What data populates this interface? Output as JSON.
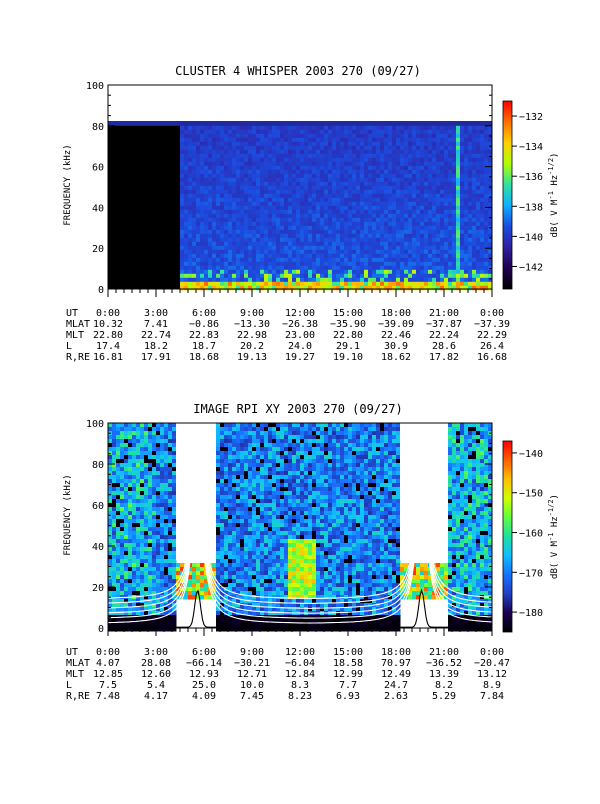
{
  "chart_data": [
    {
      "type": "heatmap",
      "title": "CLUSTER 4 WHISPER 2003 270 (09/27)",
      "ylabel": "FREQUENCY (kHz)",
      "ylim": [
        0,
        100
      ],
      "yticks": [
        0,
        20,
        40,
        60,
        80,
        100
      ],
      "data_freq_range": [
        0,
        80
      ],
      "data_start_ut": "4:30",
      "x_ticks": [
        "0:00",
        "3:00",
        "6:00",
        "9:00",
        "12:00",
        "15:00",
        "18:00",
        "21:00",
        "0:00"
      ],
      "colorbar": {
        "label": "dB( V M^-1 Hz^-1/2)",
        "label_main": "dB( V M",
        "label_exp1": "-1",
        "label_mid": " Hz",
        "label_exp2": "-1/2",
        "label_end": ")",
        "ticks": [
          -132,
          -134,
          -136,
          -138,
          -140,
          -142
        ],
        "range": [
          -143.5,
          -131
        ],
        "colors": [
          "#000000",
          "#200050",
          "#3020a0",
          "#1c4ce0",
          "#10b0ff",
          "#30e0a0",
          "#b0ff00",
          "#ffd000",
          "#ff7000",
          "#ff0000"
        ]
      },
      "ephemeris": {
        "labels": [
          "UT",
          "MLAT",
          "MLT",
          "L",
          "R,RE"
        ],
        "rows": [
          [
            "0:00",
            "3:00",
            "6:00",
            "9:00",
            "12:00",
            "15:00",
            "18:00",
            "21:00",
            "0:00"
          ],
          [
            "10.32",
            "7.41",
            "-0.86",
            "-13.30",
            "-26.38",
            "-35.90",
            "-39.09",
            "-37.87",
            "-37.39"
          ],
          [
            "22.80",
            "22.74",
            "22.83",
            "22.98",
            "23.00",
            "22.80",
            "22.46",
            "22.24",
            "22.29"
          ],
          [
            "17.4",
            "18.2",
            "18.7",
            "20.2",
            "24.0",
            "29.1",
            "30.9",
            "28.6",
            "26.4"
          ],
          [
            "16.81",
            "17.91",
            "18.68",
            "19.13",
            "19.27",
            "19.10",
            "18.62",
            "17.82",
            "16.68"
          ]
        ]
      }
    },
    {
      "type": "heatmap",
      "title": "IMAGE RPI XY 2003 270 (09/27)",
      "ylabel": "FREQUENCY (kHz)",
      "ylim": [
        0,
        100
      ],
      "yticks": [
        0,
        20,
        40,
        60,
        80,
        100
      ],
      "x_ticks": [
        "0:00",
        "3:00",
        "6:00",
        "9:00",
        "12:00",
        "15:00",
        "18:00",
        "21:00",
        "0:00"
      ],
      "data_gaps_ut": [
        [
          "4:15",
          "6:45"
        ],
        [
          "18:15",
          "21:15"
        ]
      ],
      "sweep_freq_range": [
        16,
        33
      ],
      "colorbar": {
        "label": "dB( V M^-1 Hz^-1/2)",
        "label_main": "dB( V M",
        "label_exp1": "-1",
        "label_mid": " Hz",
        "label_exp2": "-1/2",
        "label_end": ")",
        "ticks": [
          -140,
          -150,
          -160,
          -170,
          -180
        ],
        "range": [
          -185,
          -137
        ],
        "colors": [
          "#000000",
          "#1a0050",
          "#2040c0",
          "#1870ff",
          "#10c0ff",
          "#20e0a0",
          "#60ff40",
          "#d0ff00",
          "#ffc000",
          "#ff6000",
          "#ff0000"
        ]
      },
      "ephemeris": {
        "labels": [
          "UT",
          "MLAT",
          "MLT",
          "L",
          "R,RE"
        ],
        "rows": [
          [
            "0:00",
            "3:00",
            "6:00",
            "9:00",
            "12:00",
            "15:00",
            "18:00",
            "21:00",
            "0:00"
          ],
          [
            "4.07",
            "28.08",
            "-66.14",
            "-30.21",
            "-6.04",
            "18.58",
            "70.97",
            "-36.52",
            "-20.47"
          ],
          [
            "12.85",
            "12.60",
            "12.93",
            "12.71",
            "12.84",
            "12.99",
            "12.49",
            "13.39",
            "13.12"
          ],
          [
            "7.5",
            "5.4",
            "25.0",
            "10.0",
            "8.3",
            "7.7",
            "24.7",
            "8.2",
            "8.9"
          ],
          [
            "7.48",
            "4.17",
            "4.09",
            "7.45",
            "8.23",
            "6.93",
            "2.63",
            "5.29",
            "7.84"
          ]
        ]
      }
    }
  ]
}
